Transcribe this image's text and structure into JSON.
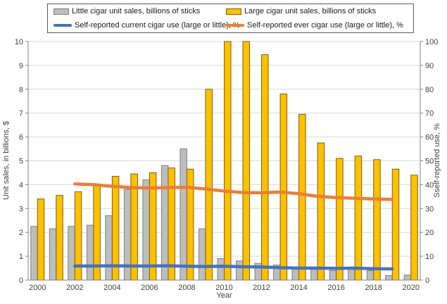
{
  "chart_data": {
    "type": "bar",
    "title": "",
    "x": [
      2000,
      2001,
      2002,
      2003,
      2004,
      2005,
      2006,
      2007,
      2008,
      2009,
      2010,
      2011,
      2012,
      2013,
      2014,
      2015,
      2016,
      2017,
      2018,
      2019,
      2020
    ],
    "xtick_labels": [
      "2000",
      "2002",
      "2004",
      "2006",
      "2008",
      "2010",
      "2012",
      "2014",
      "2016",
      "2018",
      "2020"
    ],
    "xlabel": "Year",
    "ylabel_left": "Unit sales, in billions, $",
    "ylabel_right": "Sself-reported use, %",
    "ylim_left": [
      0,
      10
    ],
    "ytick_step_left": 1,
    "ylim_right": [
      0,
      100
    ],
    "ytick_step_right": 10,
    "grid": "horizontal",
    "legend_position": "top",
    "series": [
      {
        "name": "Little cigar unit sales, billions of sticks",
        "type": "bar",
        "axis": "left",
        "color": "#bdbdbd",
        "border": "#7f7f7f",
        "values": [
          2.25,
          2.15,
          2.25,
          2.3,
          2.7,
          3.8,
          4.2,
          4.8,
          5.5,
          2.15,
          0.9,
          0.8,
          0.7,
          0.63,
          0.55,
          0.45,
          0.4,
          0.45,
          0.4,
          0.19,
          0.21
        ]
      },
      {
        "name": "Large cigar unit sales, billions of sticks",
        "type": "bar",
        "axis": "left",
        "color": "#ffc000",
        "border": "#7f6000",
        "values": [
          3.4,
          3.55,
          3.7,
          4.0,
          4.35,
          4.45,
          4.5,
          4.7,
          4.65,
          8.0,
          10.0,
          10.0,
          9.45,
          7.8,
          6.95,
          5.75,
          5.1,
          5.2,
          5.05,
          4.65,
          4.4
        ]
      },
      {
        "name": "Self-reported current cigar use (large or little), %",
        "type": "line",
        "axis": "right",
        "color": "#4472c4",
        "values": [
          null,
          null,
          5.9,
          5.9,
          6.0,
          5.9,
          5.9,
          6.0,
          5.8,
          5.7,
          5.8,
          5.6,
          5.5,
          5.2,
          5.0,
          5.0,
          4.9,
          5.0,
          4.8,
          4.7,
          null
        ]
      },
      {
        "name": "Self-reported ever cigar use (large or little), %",
        "type": "line",
        "axis": "right",
        "color": "#ed7d31",
        "values": [
          null,
          null,
          40.3,
          40.0,
          39.3,
          38.8,
          38.6,
          38.8,
          38.9,
          38.2,
          37.3,
          36.7,
          36.6,
          36.9,
          36.2,
          35.1,
          34.6,
          34.3,
          34.0,
          33.8,
          null
        ]
      }
    ],
    "colors": {
      "axis_line": "#808080",
      "gridline": "#d9d9d9",
      "tick_text": "#404040",
      "legend_border": "#595959"
    }
  }
}
